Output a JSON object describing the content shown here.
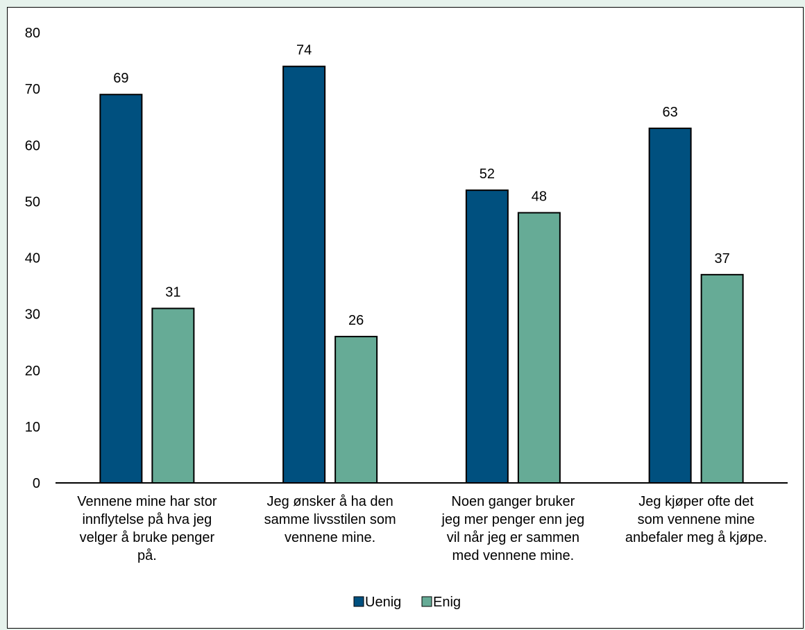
{
  "chart_data": {
    "type": "bar",
    "categories": [
      [
        "Vennene mine har stor",
        "innflytelse på hva jeg",
        "velger å bruke penger",
        "på."
      ],
      [
        "Jeg ønsker å ha den",
        "samme livsstilen som",
        "vennene mine."
      ],
      [
        "Noen ganger bruker",
        "jeg mer penger enn jeg",
        "vil når jeg er sammen",
        "med vennene mine."
      ],
      [
        "Jeg kjøper ofte det",
        "som vennene mine",
        "anbefaler meg å kjøpe."
      ]
    ],
    "series": [
      {
        "name": "Uenig",
        "values": [
          69,
          74,
          52,
          63
        ],
        "color": "#00507f"
      },
      {
        "name": "Enig",
        "values": [
          31,
          26,
          48,
          37
        ],
        "color": "#66ab96"
      }
    ],
    "ylim": [
      0,
      80
    ],
    "yticks": [
      0,
      10,
      20,
      30,
      40,
      50,
      60,
      70,
      80
    ],
    "legend_position": "bottom",
    "grid": false
  }
}
